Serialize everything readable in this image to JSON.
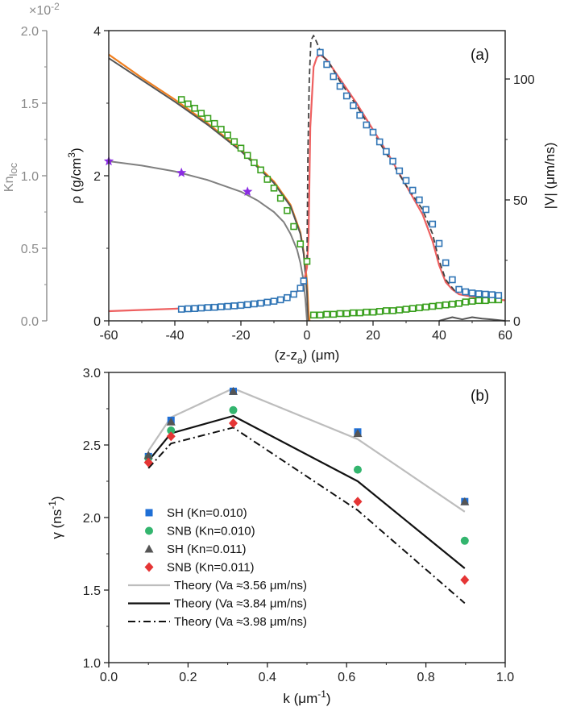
{
  "chart_data": [
    {
      "panel": "(a)",
      "type": "line",
      "xlabel": "(z-z",
      "xlabel_sub": "a",
      "xlabel_unit": ") (μm)",
      "xlim": [
        -60,
        60
      ],
      "xticks": [
        "-60",
        "-40",
        "-20",
        "0",
        "20",
        "40",
        "60"
      ],
      "far_left_axis": {
        "label": "Kn",
        "label_sub": "loc",
        "multiplier": "×10",
        "multiplier_exp": "-2",
        "ylim": [
          0,
          2.0
        ],
        "ticks": [
          "0.0",
          "0.5",
          "1.0",
          "1.5",
          "2.0"
        ],
        "color": "#8a8a8a"
      },
      "left_axis": {
        "label": "ρ (g/cm",
        "label_sup": "3",
        "label_end": ")",
        "ylim": [
          0,
          4
        ],
        "ticks": [
          "0",
          "2",
          "4"
        ]
      },
      "right_axis": {
        "label": "|V| (μm/ns)",
        "ylim": [
          0,
          120
        ],
        "ticks": [
          "0",
          "50",
          "100"
        ]
      },
      "series": [
        {
          "axis": "left",
          "style": "line",
          "color": "#f07f1f",
          "width": 2.2,
          "points": [
            [
              -60,
              3.67
            ],
            [
              -50,
              3.35
            ],
            [
              -40,
              3.05
            ],
            [
              -30,
              2.72
            ],
            [
              -20,
              2.36
            ],
            [
              -10,
              1.92
            ],
            [
              -5,
              1.6
            ],
            [
              -2,
              1.22
            ],
            [
              -1,
              0.95
            ],
            [
              0,
              0.55
            ],
            [
              0.5,
              0.1
            ],
            [
              0.8,
              0
            ]
          ]
        },
        {
          "axis": "left",
          "style": "line",
          "color": "#555555",
          "width": 2.0,
          "points": [
            [
              -60,
              3.62
            ],
            [
              -50,
              3.32
            ],
            [
              -40,
              3.02
            ],
            [
              -30,
              2.7
            ],
            [
              -20,
              2.34
            ],
            [
              -10,
              1.9
            ],
            [
              -5,
              1.58
            ],
            [
              -2,
              1.2
            ],
            [
              -1,
              0.92
            ],
            [
              0,
              0.4
            ],
            [
              0.3,
              0
            ]
          ]
        },
        {
          "axis": "left",
          "style": "line",
          "color": "#555555",
          "width": 2.0,
          "points": [
            [
              40,
              0
            ],
            [
              44,
              0.05
            ],
            [
              47,
              0.02
            ],
            [
              50,
              0.05
            ],
            [
              53,
              0.03
            ],
            [
              56,
              0.02
            ],
            [
              60,
              0
            ]
          ]
        },
        {
          "axis": "left",
          "style": "markers",
          "marker": "open-square",
          "color": "#3aa01e",
          "points": [
            [
              -38,
              3.05
            ],
            [
              -36,
              2.99
            ],
            [
              -34,
              2.93
            ],
            [
              -32,
              2.86
            ],
            [
              -30,
              2.79
            ],
            [
              -28,
              2.72
            ],
            [
              -26,
              2.64
            ],
            [
              -24,
              2.56
            ],
            [
              -22,
              2.47
            ],
            [
              -20,
              2.38
            ],
            [
              -18,
              2.28
            ],
            [
              -16,
              2.18
            ],
            [
              -14,
              2.08
            ],
            [
              -12,
              1.95
            ],
            [
              -10,
              1.83
            ],
            [
              -8,
              1.69
            ],
            [
              -6,
              1.52
            ],
            [
              -4,
              1.3
            ],
            [
              -2,
              1.06
            ],
            [
              0,
              0.82
            ],
            [
              2,
              0.08
            ],
            [
              4,
              0.08
            ],
            [
              6,
              0.09
            ],
            [
              8,
              0.09
            ],
            [
              10,
              0.1
            ],
            [
              12,
              0.1
            ],
            [
              14,
              0.11
            ],
            [
              16,
              0.11
            ],
            [
              18,
              0.12
            ],
            [
              20,
              0.12
            ],
            [
              22,
              0.13
            ],
            [
              24,
              0.14
            ],
            [
              26,
              0.14
            ],
            [
              28,
              0.15
            ],
            [
              30,
              0.16
            ],
            [
              32,
              0.17
            ],
            [
              34,
              0.18
            ],
            [
              36,
              0.19
            ],
            [
              38,
              0.2
            ],
            [
              40,
              0.21
            ],
            [
              42,
              0.22
            ],
            [
              44,
              0.23
            ],
            [
              46,
              0.24
            ],
            [
              48,
              0.26
            ],
            [
              50,
              0.27
            ],
            [
              52,
              0.28
            ],
            [
              54,
              0.28
            ],
            [
              56,
              0.29
            ],
            [
              58,
              0.29
            ]
          ]
        },
        {
          "axis": "right",
          "style": "line",
          "color": "#ee6060",
          "width": 2.2,
          "points": [
            [
              -60,
              4.0
            ],
            [
              -50,
              4.5
            ],
            [
              -40,
              5.0
            ],
            [
              -30,
              5.8
            ],
            [
              -20,
              6.8
            ],
            [
              -10,
              8.5
            ],
            [
              -5,
              10.5
            ],
            [
              -2,
              13
            ],
            [
              -1,
              16
            ],
            [
              0,
              22
            ],
            [
              0.5,
              35
            ],
            [
              1,
              80
            ],
            [
              2,
              105
            ],
            [
              3,
              109
            ],
            [
              4,
              110
            ],
            [
              6,
              108
            ],
            [
              10,
              100
            ],
            [
              15,
              90
            ],
            [
              20,
              79
            ],
            [
              25,
              68
            ],
            [
              30,
              56
            ],
            [
              35,
              44
            ],
            [
              38,
              33
            ],
            [
              40,
              23
            ],
            [
              42,
              16
            ],
            [
              44,
              13
            ],
            [
              46,
              11
            ],
            [
              50,
              10
            ],
            [
              55,
              9
            ],
            [
              60,
              8.5
            ]
          ]
        },
        {
          "axis": "right",
          "style": "line",
          "dash": "7,4",
          "color": "#444444",
          "width": 1.8,
          "points": [
            [
              0,
              25
            ],
            [
              0.3,
              70
            ],
            [
              0.7,
              100
            ],
            [
              1.2,
              116
            ],
            [
              2,
              118
            ],
            [
              3,
              115
            ],
            [
              4.5,
              110
            ],
            [
              7,
              106
            ],
            [
              10,
              99
            ],
            [
              15,
              89
            ],
            [
              20,
              78
            ],
            [
              25,
              67
            ],
            [
              30,
              56
            ],
            [
              35,
              46
            ],
            [
              38,
              36
            ],
            [
              40,
              25
            ],
            [
              42,
              17
            ],
            [
              45,
              12
            ]
          ]
        },
        {
          "axis": "right",
          "style": "markers",
          "marker": "open-square",
          "color": "#2f74b5",
          "points": [
            [
              -38,
              4.8
            ],
            [
              -36,
              5.0
            ],
            [
              -34,
              5.1
            ],
            [
              -32,
              5.3
            ],
            [
              -30,
              5.5
            ],
            [
              -28,
              5.6
            ],
            [
              -26,
              5.8
            ],
            [
              -24,
              6.0
            ],
            [
              -22,
              6.2
            ],
            [
              -20,
              6.4
            ],
            [
              -18,
              6.7
            ],
            [
              -16,
              7.0
            ],
            [
              -14,
              7.3
            ],
            [
              -12,
              7.7
            ],
            [
              -10,
              8.1
            ],
            [
              -8,
              8.7
            ],
            [
              -6,
              9.6
            ],
            [
              -4,
              11
            ],
            [
              -2,
              13.5
            ],
            [
              -1,
              16.5
            ],
            [
              4,
              111
            ],
            [
              6,
              106
            ],
            [
              8,
              101
            ],
            [
              10,
              97
            ],
            [
              12,
              93
            ],
            [
              14,
              89
            ],
            [
              16,
              85
            ],
            [
              18,
              81
            ],
            [
              20,
              78
            ],
            [
              22,
              74
            ],
            [
              24,
              70
            ],
            [
              26,
              66
            ],
            [
              28,
              62
            ],
            [
              30,
              58
            ],
            [
              32,
              54
            ],
            [
              34,
              50
            ],
            [
              36,
              46
            ],
            [
              38,
              40
            ],
            [
              40,
              32
            ],
            [
              42,
              24
            ],
            [
              44,
              17
            ],
            [
              46,
              13
            ],
            [
              48,
              12
            ],
            [
              50,
              11.5
            ],
            [
              52,
              11.2
            ],
            [
              54,
              11
            ],
            [
              56,
              10.8
            ],
            [
              58,
              10.5
            ]
          ]
        },
        {
          "axis": "far_left",
          "style": "line",
          "color": "#808080",
          "width": 2.0,
          "points": [
            [
              -60,
              1.1
            ],
            [
              -50,
              1.07
            ],
            [
              -40,
              1.03
            ],
            [
              -30,
              0.97
            ],
            [
              -20,
              0.89
            ],
            [
              -15,
              0.83
            ],
            [
              -10,
              0.75
            ],
            [
              -7,
              0.68
            ],
            [
              -5,
              0.6
            ],
            [
              -3,
              0.49
            ],
            [
              -2,
              0.4
            ],
            [
              -1,
              0.27
            ],
            [
              -0.5,
              0.15
            ],
            [
              0,
              0
            ]
          ]
        },
        {
          "axis": "far_left",
          "style": "markers",
          "marker": "star",
          "color": "#8a2be2",
          "points": [
            [
              -60,
              1.1
            ],
            [
              -38,
              1.02
            ],
            [
              -18,
              0.89
            ]
          ]
        }
      ]
    },
    {
      "panel": "(b)",
      "type": "scatter",
      "xlabel": "k (μm",
      "xlabel_sup": "-1",
      "xlabel_end": ")",
      "ylabel": "γ (ns",
      "ylabel_sup": "-1",
      "ylabel_end": ")",
      "xlim": [
        0.0,
        1.0
      ],
      "ylim": [
        1.0,
        3.0
      ],
      "xticks": [
        "0.0",
        "0.2",
        "0.4",
        "0.6",
        "0.8",
        "1.0"
      ],
      "yticks": [
        "1.0",
        "1.5",
        "2.0",
        "2.5",
        "3.0"
      ],
      "legend": "left",
      "series": [
        {
          "name": "SH (Kn=0.010)",
          "marker": "square",
          "color": "#1f6fd6",
          "x": [
            0.1,
            0.157,
            0.314,
            0.628,
            0.898
          ],
          "values": [
            2.42,
            2.67,
            2.87,
            2.59,
            2.11
          ]
        },
        {
          "name": "SNB (Kn=0.010)",
          "marker": "circle",
          "color": "#33b56e",
          "x": [
            0.1,
            0.157,
            0.314,
            0.628,
            0.898
          ],
          "values": [
            2.41,
            2.6,
            2.74,
            2.33,
            1.84
          ]
        },
        {
          "name": "SH (Kn=0.011)",
          "marker": "triangle",
          "color": "#555555",
          "x": [
            0.1,
            0.157,
            0.314,
            0.628,
            0.898
          ],
          "values": [
            2.43,
            2.66,
            2.87,
            2.58,
            2.11
          ]
        },
        {
          "name": "SNB (Kn=0.011)",
          "marker": "diamond",
          "color": "#e53535",
          "x": [
            0.1,
            0.157,
            0.314,
            0.628,
            0.898
          ],
          "values": [
            2.38,
            2.56,
            2.65,
            2.11,
            1.57
          ]
        },
        {
          "name": "Theory (Va ≈3.56 μm/ns)",
          "style": "line",
          "color": "#bdbdbd",
          "width": 2.2,
          "x": [
            0.1,
            0.157,
            0.314,
            0.628,
            0.898
          ],
          "values": [
            2.46,
            2.69,
            2.89,
            2.54,
            2.04
          ]
        },
        {
          "name": "Theory (Va ≈3.84 μm/ns)",
          "style": "line",
          "color": "#111111",
          "width": 2.2,
          "x": [
            0.1,
            0.157,
            0.314,
            0.628,
            0.898
          ],
          "values": [
            2.39,
            2.58,
            2.7,
            2.25,
            1.65
          ]
        },
        {
          "name": "Theory (Va ≈3.98 μm/ns)",
          "style": "line",
          "dash": "9,4,2,4",
          "color": "#111111",
          "width": 2.0,
          "x": [
            0.1,
            0.157,
            0.314,
            0.628,
            0.898
          ],
          "values": [
            2.34,
            2.51,
            2.62,
            2.05,
            1.41
          ]
        }
      ]
    }
  ]
}
